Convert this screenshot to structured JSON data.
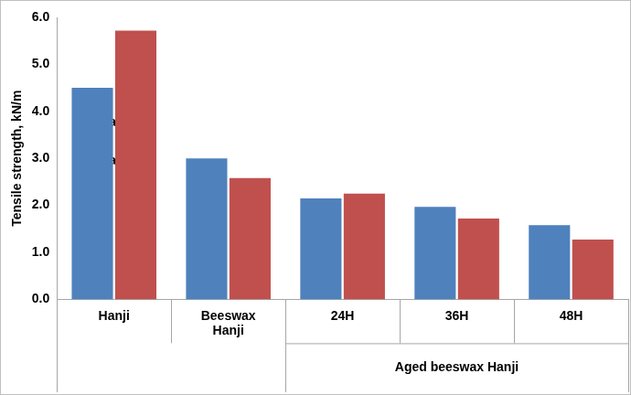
{
  "chart_data": {
    "type": "bar",
    "y_label": "Tensile strength, kN/m",
    "categories": [
      "Hanji",
      "Beeswax Hanji",
      "24H",
      "36H",
      "48H"
    ],
    "series": [
      {
        "name": "Bal ⊥",
        "color": "#4f81bd",
        "values": [
          4.5,
          3.0,
          2.15,
          1.97,
          1.58
        ]
      },
      {
        "name": "Bal ∥",
        "color": "#c0504d",
        "values": [
          5.72,
          2.58,
          2.25,
          1.72,
          1.27
        ]
      }
    ],
    "annotations": [
      {
        "text": "Aged beeswax Hanji",
        "categories": [
          "24H",
          "36H",
          "48H"
        ]
      }
    ],
    "ylim": [
      0,
      6
    ],
    "yticks": [
      {
        "value": 0,
        "label": "0.0"
      },
      {
        "value": 1,
        "label": "1.0"
      },
      {
        "value": 2,
        "label": "2.0"
      },
      {
        "value": 3,
        "label": "3.0"
      },
      {
        "value": 4,
        "label": "4.0"
      },
      {
        "value": 5,
        "label": "5.0"
      },
      {
        "value": 6,
        "label": "6.0"
      }
    ],
    "grid": false,
    "legend": "top"
  }
}
